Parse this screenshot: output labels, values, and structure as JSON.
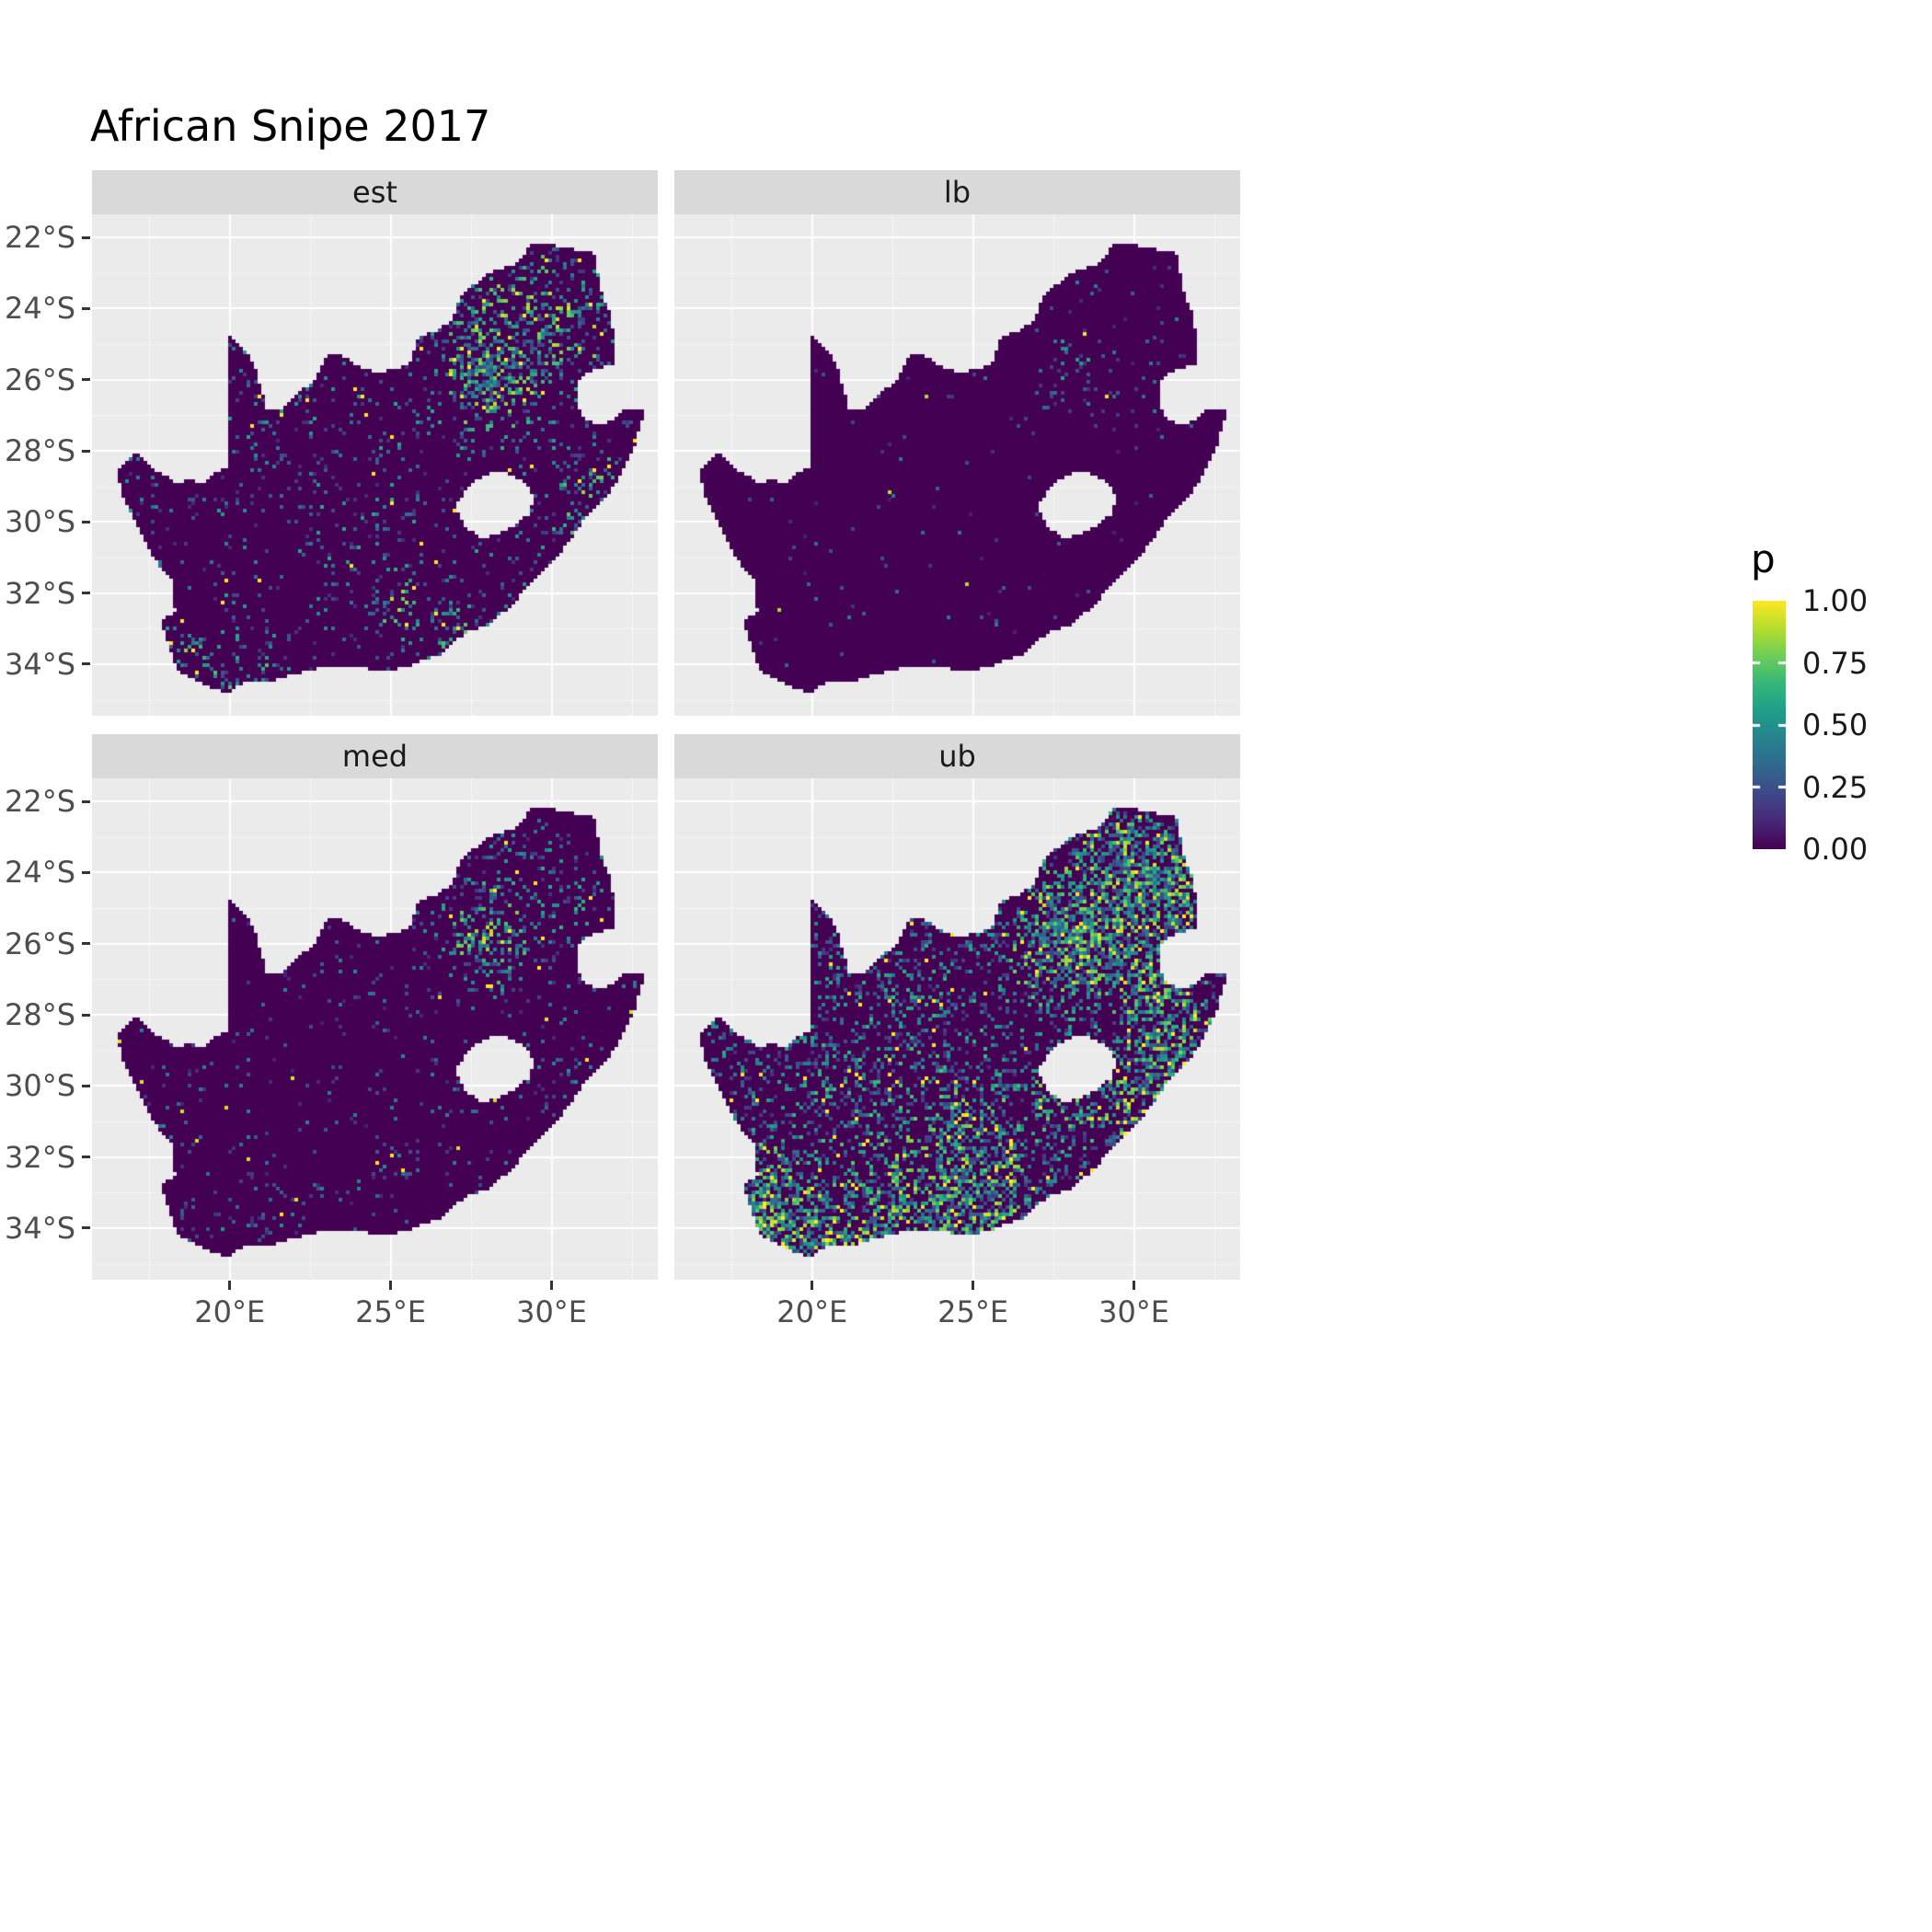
{
  "chart_data": {
    "type": "heatmap",
    "subtype": "faceted-raster-map",
    "title": "African Snipe 2017",
    "region": "South Africa",
    "summary": "Four-facet raster map of estimated occupancy/reporting probability p (0 to 1, viridis colour scale) for African Snipe in 2017 over South Africa: point estimate (est), lower bound (lb), median (med) and upper bound (ub).",
    "facet_variable_values": [
      "est",
      "lb",
      "med",
      "ub"
    ],
    "legend": {
      "title": "p",
      "tick_labels": [
        "1.00",
        "0.75",
        "0.50",
        "0.25",
        "0.00"
      ],
      "tick_values": [
        1.0,
        0.75,
        0.5,
        0.25,
        0.0
      ],
      "colormap": "viridis",
      "range": [
        0,
        1
      ]
    },
    "x_axis": {
      "tick_labels": [
        "20°E",
        "25°E",
        "30°E"
      ],
      "tick_values": [
        20,
        25,
        30
      ],
      "minor_values": [
        17.5,
        22.5,
        27.5,
        32.5
      ],
      "range": [
        15.72,
        33.3
      ]
    },
    "y_axis": {
      "tick_labels": [
        "22°S",
        "24°S",
        "26°S",
        "28°S",
        "30°S",
        "32°S",
        "34°S"
      ],
      "tick_values": [
        -22,
        -24,
        -26,
        -28,
        -30,
        -32,
        -34
      ],
      "minor_values": [
        -23,
        -25,
        -27,
        -29,
        -31,
        -33,
        -35
      ],
      "range": [
        -35.45,
        -21.35
      ]
    },
    "colormap_stops": [
      "#440154",
      "#482878",
      "#3E4A89",
      "#31688E",
      "#26828E",
      "#1F9E89",
      "#35B779",
      "#6DCD59",
      "#B4DE2C",
      "#FDE725"
    ],
    "panel": {
      "background": "#EBEBEB",
      "strip_background": "#D9D9D9",
      "gridline_color": "#FFFFFF",
      "axis_text_color": "#4D4D4D",
      "strip_text_color": "#1A1A1A",
      "tick_mark_color": "#333333"
    },
    "map_outline_lonlat": [
      [
        16.45,
        -28.58
      ],
      [
        16.75,
        -28.3
      ],
      [
        17.05,
        -28.05
      ],
      [
        17.35,
        -28.22
      ],
      [
        17.7,
        -28.55
      ],
      [
        18.0,
        -28.72
      ],
      [
        18.35,
        -28.88
      ],
      [
        18.75,
        -28.83
      ],
      [
        19.2,
        -28.9
      ],
      [
        19.6,
        -28.6
      ],
      [
        19.98,
        -28.43
      ],
      [
        19.98,
        -24.77
      ],
      [
        20.3,
        -25.0
      ],
      [
        20.6,
        -25.35
      ],
      [
        20.8,
        -25.7
      ],
      [
        20.95,
        -26.2
      ],
      [
        21.15,
        -26.8
      ],
      [
        21.65,
        -26.85
      ],
      [
        22.1,
        -26.4
      ],
      [
        22.6,
        -26.05
      ],
      [
        22.88,
        -25.55
      ],
      [
        23.0,
        -25.3
      ],
      [
        23.5,
        -25.3
      ],
      [
        23.95,
        -25.62
      ],
      [
        24.45,
        -25.77
      ],
      [
        25.0,
        -25.74
      ],
      [
        25.55,
        -25.6
      ],
      [
        25.9,
        -24.77
      ],
      [
        26.45,
        -24.64
      ],
      [
        26.9,
        -24.3
      ],
      [
        27.2,
        -23.65
      ],
      [
        27.75,
        -23.2
      ],
      [
        28.3,
        -22.9
      ],
      [
        28.95,
        -22.74
      ],
      [
        29.37,
        -22.2
      ],
      [
        29.95,
        -22.2
      ],
      [
        30.55,
        -22.32
      ],
      [
        31.3,
        -22.42
      ],
      [
        31.55,
        -23.5
      ],
      [
        31.87,
        -24.3
      ],
      [
        31.98,
        -25.1
      ],
      [
        31.95,
        -25.55
      ],
      [
        31.3,
        -25.73
      ],
      [
        30.88,
        -25.98
      ],
      [
        30.8,
        -26.55
      ],
      [
        30.95,
        -27.05
      ],
      [
        31.5,
        -27.3
      ],
      [
        32.05,
        -27.05
      ],
      [
        32.15,
        -26.85
      ],
      [
        32.89,
        -26.86
      ],
      [
        32.55,
        -27.95
      ],
      [
        32.2,
        -28.6
      ],
      [
        31.75,
        -29.25
      ],
      [
        31.05,
        -29.9
      ],
      [
        30.5,
        -30.6
      ],
      [
        30.0,
        -31.15
      ],
      [
        29.4,
        -31.7
      ],
      [
        28.7,
        -32.4
      ],
      [
        28.0,
        -32.9
      ],
      [
        27.35,
        -33.1
      ],
      [
        26.5,
        -33.75
      ],
      [
        25.65,
        -34.02
      ],
      [
        24.85,
        -34.2
      ],
      [
        23.6,
        -34.05
      ],
      [
        22.5,
        -34.15
      ],
      [
        21.4,
        -34.45
      ],
      [
        20.5,
        -34.45
      ],
      [
        20.0,
        -34.82
      ],
      [
        19.3,
        -34.62
      ],
      [
        18.8,
        -34.38
      ],
      [
        18.43,
        -34.2
      ],
      [
        18.28,
        -33.9
      ],
      [
        17.98,
        -33.15
      ],
      [
        17.85,
        -32.75
      ],
      [
        18.3,
        -32.55
      ],
      [
        18.22,
        -31.65
      ],
      [
        17.6,
        -31.0
      ],
      [
        17.05,
        -30.0
      ],
      [
        16.7,
        -29.3
      ]
    ],
    "map_hole_lesotho_lonlat": [
      [
        27.0,
        -29.6
      ],
      [
        27.35,
        -29.1
      ],
      [
        27.6,
        -28.85
      ],
      [
        28.15,
        -28.6
      ],
      [
        28.7,
        -28.65
      ],
      [
        29.15,
        -28.9
      ],
      [
        29.45,
        -29.3
      ],
      [
        29.28,
        -29.78
      ],
      [
        28.85,
        -30.12
      ],
      [
        28.25,
        -30.4
      ],
      [
        27.72,
        -30.42
      ],
      [
        27.32,
        -30.12
      ]
    ],
    "facets": [
      {
        "label": "est",
        "seed": 3,
        "base": 0.055,
        "gain": 0.6,
        "description": "Mostly near-zero probability; scattered low-moderate cells countrywide with a dense high-p (green-yellow) cluster around Gauteng (~28°E, 26°S), and smaller bright patches near the southwest Cape, south coast and eastern escarpment.",
        "hotspots": [
          [
            28.0,
            -26.0,
            0.75,
            0.95
          ],
          [
            28.6,
            -24.9,
            1.5,
            0.32
          ],
          [
            29.7,
            -23.8,
            1.0,
            0.28
          ],
          [
            30.9,
            -24.9,
            1.0,
            0.28
          ],
          [
            30.7,
            -29.8,
            0.7,
            0.3
          ],
          [
            31.6,
            -28.7,
            0.6,
            0.25
          ],
          [
            18.55,
            -33.9,
            0.5,
            0.5
          ],
          [
            20.6,
            -34.3,
            0.7,
            0.3
          ],
          [
            25.2,
            -32.3,
            0.45,
            0.55
          ],
          [
            26.9,
            -33.2,
            0.5,
            0.3
          ],
          [
            24.0,
            -28.5,
            3.0,
            0.06
          ]
        ]
      },
      {
        "label": "lb",
        "seed": 5,
        "base": 0.012,
        "gain": 0.45,
        "description": "Lower bound: almost uniformly near zero (dark purple); sparse low-p speckles concentrated in the northeast around Gauteng with a handful of isolated bright cells.",
        "hotspots": [
          [
            28.2,
            -25.7,
            0.9,
            0.22
          ],
          [
            29.8,
            -23.9,
            0.8,
            0.08
          ],
          [
            30.9,
            -26.9,
            0.5,
            0.06
          ]
        ]
      },
      {
        "label": "med",
        "seed": 7,
        "base": 0.035,
        "gain": 0.5,
        "description": "Median: mostly near zero with a moderate green-yellow cluster around Gauteng (~28°E, 26°S) and sparse speckles in the northeast, south coast and southwest Cape.",
        "hotspots": [
          [
            28.0,
            -26.0,
            0.8,
            0.62
          ],
          [
            28.8,
            -24.6,
            1.3,
            0.22
          ],
          [
            30.9,
            -25.0,
            1.0,
            0.18
          ],
          [
            18.6,
            -33.9,
            0.5,
            0.28
          ],
          [
            25.2,
            -32.3,
            0.4,
            0.3
          ],
          [
            30.7,
            -29.8,
            0.7,
            0.2
          ],
          [
            20.8,
            -34.3,
            0.8,
            0.18
          ]
        ]
      },
      {
        "label": "ub",
        "seed": 11,
        "base": 0.17,
        "gain": 0.62,
        "description": "Upper bound: widespread moderate p (teal speckle) with large high-p yellow clusters over Gauteng and the northeast lowveld, along the KwaZulu-Natal coast, and along the southern and western Cape coastal belts.",
        "hotspots": [
          [
            28.1,
            -25.9,
            1.0,
            1.05
          ],
          [
            29.7,
            -23.6,
            1.2,
            0.7
          ],
          [
            31.2,
            -24.8,
            1.0,
            0.7
          ],
          [
            30.5,
            -26.8,
            0.8,
            0.45
          ],
          [
            31.0,
            -28.1,
            0.9,
            0.5
          ],
          [
            30.8,
            -29.7,
            0.8,
            0.6
          ],
          [
            29.5,
            -30.8,
            0.8,
            0.45
          ],
          [
            18.6,
            -33.8,
            0.8,
            0.8
          ],
          [
            18.3,
            -32.5,
            0.7,
            0.5
          ],
          [
            20.3,
            -34.4,
            0.9,
            0.65
          ],
          [
            22.3,
            -34.1,
            0.9,
            0.55
          ],
          [
            24.3,
            -33.9,
            0.9,
            0.5
          ],
          [
            26.0,
            -33.6,
            0.8,
            0.5
          ],
          [
            25.0,
            -31.8,
            1.0,
            0.5
          ],
          [
            23.5,
            -32.5,
            1.3,
            0.25
          ],
          [
            24.0,
            -28.0,
            2.2,
            0.12
          ],
          [
            21.0,
            -30.5,
            1.5,
            0.15
          ],
          [
            27.5,
            -30.5,
            0.8,
            0.3
          ]
        ]
      }
    ]
  }
}
